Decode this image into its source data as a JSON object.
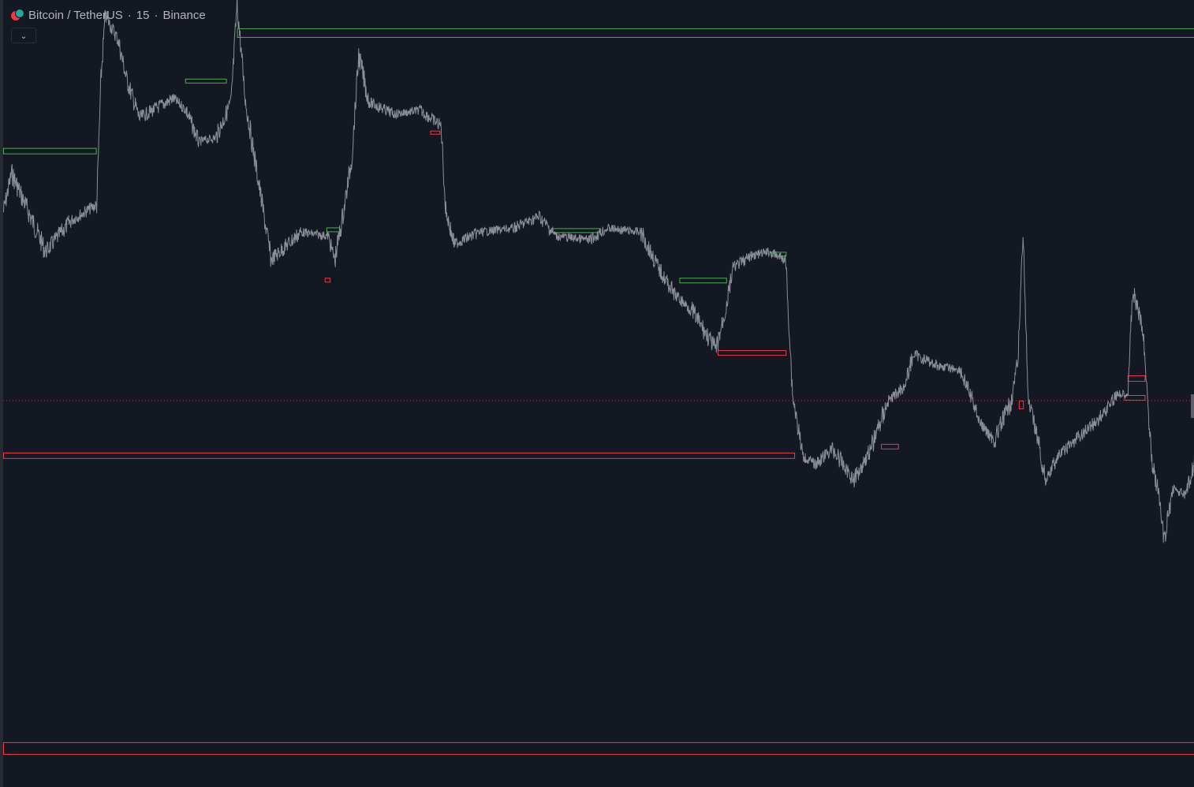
{
  "legend": {
    "symbol": "Bitcoin / TetherUS",
    "interval": "15",
    "exchange": "Binance",
    "logo_icon": "btc-usdt-logo-icon",
    "collapse_icon": "chevron-down-icon"
  },
  "colors": {
    "background": "#141823",
    "price_line": "#8a8e99",
    "bullish_zone": "#4caf50",
    "bearish_zone": "#f23645",
    "last_price_line": "#f23645"
  },
  "chart_data": {
    "type": "line",
    "title": "",
    "xlabel": "",
    "ylabel": "",
    "grid": false,
    "bars": 1400,
    "ylim": [
      0,
      1000
    ],
    "price_path": [
      [
        0,
        270
      ],
      [
        10,
        220
      ],
      [
        50,
        320
      ],
      [
        80,
        280
      ],
      [
        110,
        260
      ],
      [
        115,
        100
      ],
      [
        120,
        20
      ],
      [
        135,
        50
      ],
      [
        145,
        100
      ],
      [
        160,
        150
      ],
      [
        200,
        125
      ],
      [
        215,
        140
      ],
      [
        230,
        180
      ],
      [
        250,
        175
      ],
      [
        268,
        130
      ],
      [
        275,
        5
      ],
      [
        285,
        130
      ],
      [
        300,
        230
      ],
      [
        315,
        330
      ],
      [
        350,
        295
      ],
      [
        382,
        300
      ],
      [
        390,
        330
      ],
      [
        400,
        270
      ],
      [
        410,
        200
      ],
      [
        418,
        70
      ],
      [
        430,
        130
      ],
      [
        460,
        145
      ],
      [
        490,
        140
      ],
      [
        515,
        160
      ],
      [
        520,
        265
      ],
      [
        530,
        310
      ],
      [
        560,
        295
      ],
      [
        600,
        290
      ],
      [
        630,
        275
      ],
      [
        650,
        300
      ],
      [
        690,
        305
      ],
      [
        710,
        290
      ],
      [
        750,
        295
      ],
      [
        770,
        340
      ],
      [
        790,
        375
      ],
      [
        810,
        395
      ],
      [
        838,
        445
      ],
      [
        850,
        390
      ],
      [
        858,
        340
      ],
      [
        880,
        325
      ],
      [
        900,
        320
      ],
      [
        920,
        330
      ],
      [
        928,
        500
      ],
      [
        940,
        580
      ],
      [
        955,
        590
      ],
      [
        975,
        570
      ],
      [
        1000,
        610
      ],
      [
        1020,
        570
      ],
      [
        1040,
        510
      ],
      [
        1060,
        490
      ],
      [
        1070,
        450
      ],
      [
        1100,
        465
      ],
      [
        1125,
        470
      ],
      [
        1140,
        510
      ],
      [
        1150,
        540
      ],
      [
        1165,
        560
      ],
      [
        1185,
        510
      ],
      [
        1193,
        460
      ],
      [
        1199,
        290
      ],
      [
        1205,
        510
      ],
      [
        1215,
        550
      ],
      [
        1225,
        610
      ],
      [
        1240,
        580
      ],
      [
        1260,
        560
      ],
      [
        1290,
        530
      ],
      [
        1310,
        500
      ],
      [
        1322,
        500
      ],
      [
        1328,
        370
      ],
      [
        1340,
        420
      ],
      [
        1350,
        580
      ],
      [
        1360,
        640
      ],
      [
        1365,
        690
      ],
      [
        1375,
        620
      ],
      [
        1390,
        630
      ],
      [
        1400,
        590
      ],
      [
        1405,
        485
      ]
    ],
    "zones": [
      {
        "type": "bull",
        "x0": 0,
        "x1": 109,
        "y0": 188,
        "y1": 195
      },
      {
        "type": "bull",
        "x0": 275,
        "x1": 1403,
        "y0": 36,
        "y1": 47
      },
      {
        "type": "bull",
        "x0": 214,
        "x1": 262,
        "y0": 100,
        "y1": 105
      },
      {
        "type": "bull",
        "x0": 380,
        "x1": 395,
        "y0": 289,
        "y1": 294
      },
      {
        "type": "bull",
        "x0": 645,
        "x1": 702,
        "y0": 290,
        "y1": 295
      },
      {
        "type": "bull",
        "x0": 795,
        "x1": 850,
        "y0": 353,
        "y1": 359
      },
      {
        "type": "bull",
        "x0": 903,
        "x1": 920,
        "y0": 320,
        "y1": 325
      },
      {
        "type": "bear",
        "x0": 378,
        "x1": 384,
        "y0": 353,
        "y1": 358
      },
      {
        "type": "bear",
        "x0": 502,
        "x1": 513,
        "y0": 166,
        "y1": 170
      },
      {
        "type": "bear",
        "x0": 840,
        "x1": 920,
        "y0": 445,
        "y1": 451
      },
      {
        "type": "bear",
        "x0": 0,
        "x1": 930,
        "y0": 575,
        "y1": 582
      },
      {
        "type": "bear",
        "x0": 1032,
        "x1": 1052,
        "y0": 564,
        "y1": 570
      },
      {
        "type": "bear",
        "x0": 1194,
        "x1": 1199,
        "y0": 509,
        "y1": 519
      },
      {
        "type": "bear",
        "x0": 1322,
        "x1": 1342,
        "y0": 477,
        "y1": 484
      },
      {
        "type": "bear",
        "x0": 1318,
        "x1": 1342,
        "y0": 502,
        "y1": 508
      },
      {
        "type": "bear",
        "x0": 0,
        "x1": 1403,
        "y0": 943,
        "y1": 958
      }
    ],
    "last_price_level": 509
  }
}
